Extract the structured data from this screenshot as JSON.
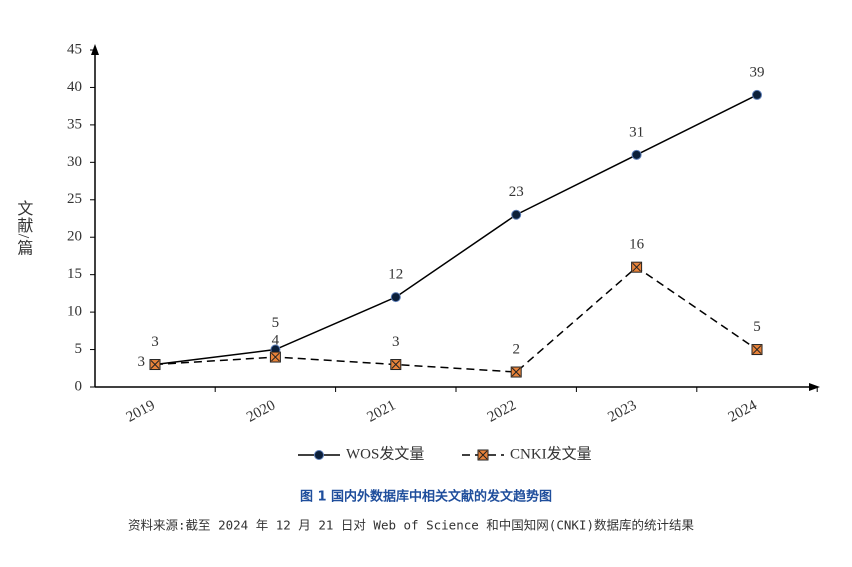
{
  "chart_data": {
    "type": "line",
    "y_label": "文献/篇",
    "categories": [
      "2019",
      "2020",
      "2021",
      "2022",
      "2023",
      "2024"
    ],
    "series": [
      {
        "name": "WOS发文量",
        "color": "#0b1f3a",
        "line_style": "solid",
        "marker": "circle",
        "values": [
          3,
          5,
          12,
          23,
          31,
          39
        ]
      },
      {
        "name": "CNKI发文量",
        "color": "#e8833a",
        "line_style": "dashed",
        "marker": "square-x",
        "values": [
          3,
          4,
          3,
          2,
          16,
          5
        ]
      }
    ],
    "ylim": [
      0,
      45
    ],
    "yticks": [
      0,
      5,
      10,
      15,
      20,
      25,
      30,
      35,
      40,
      45
    ],
    "legend": "bottom",
    "caption": "图 1   国内外数据库中相关文献的发文趋势图",
    "source": "资料来源:截至 2024 年 12 月 21 日对 Web of Science 和中国知网(CNKI)数据库的统计结果"
  }
}
